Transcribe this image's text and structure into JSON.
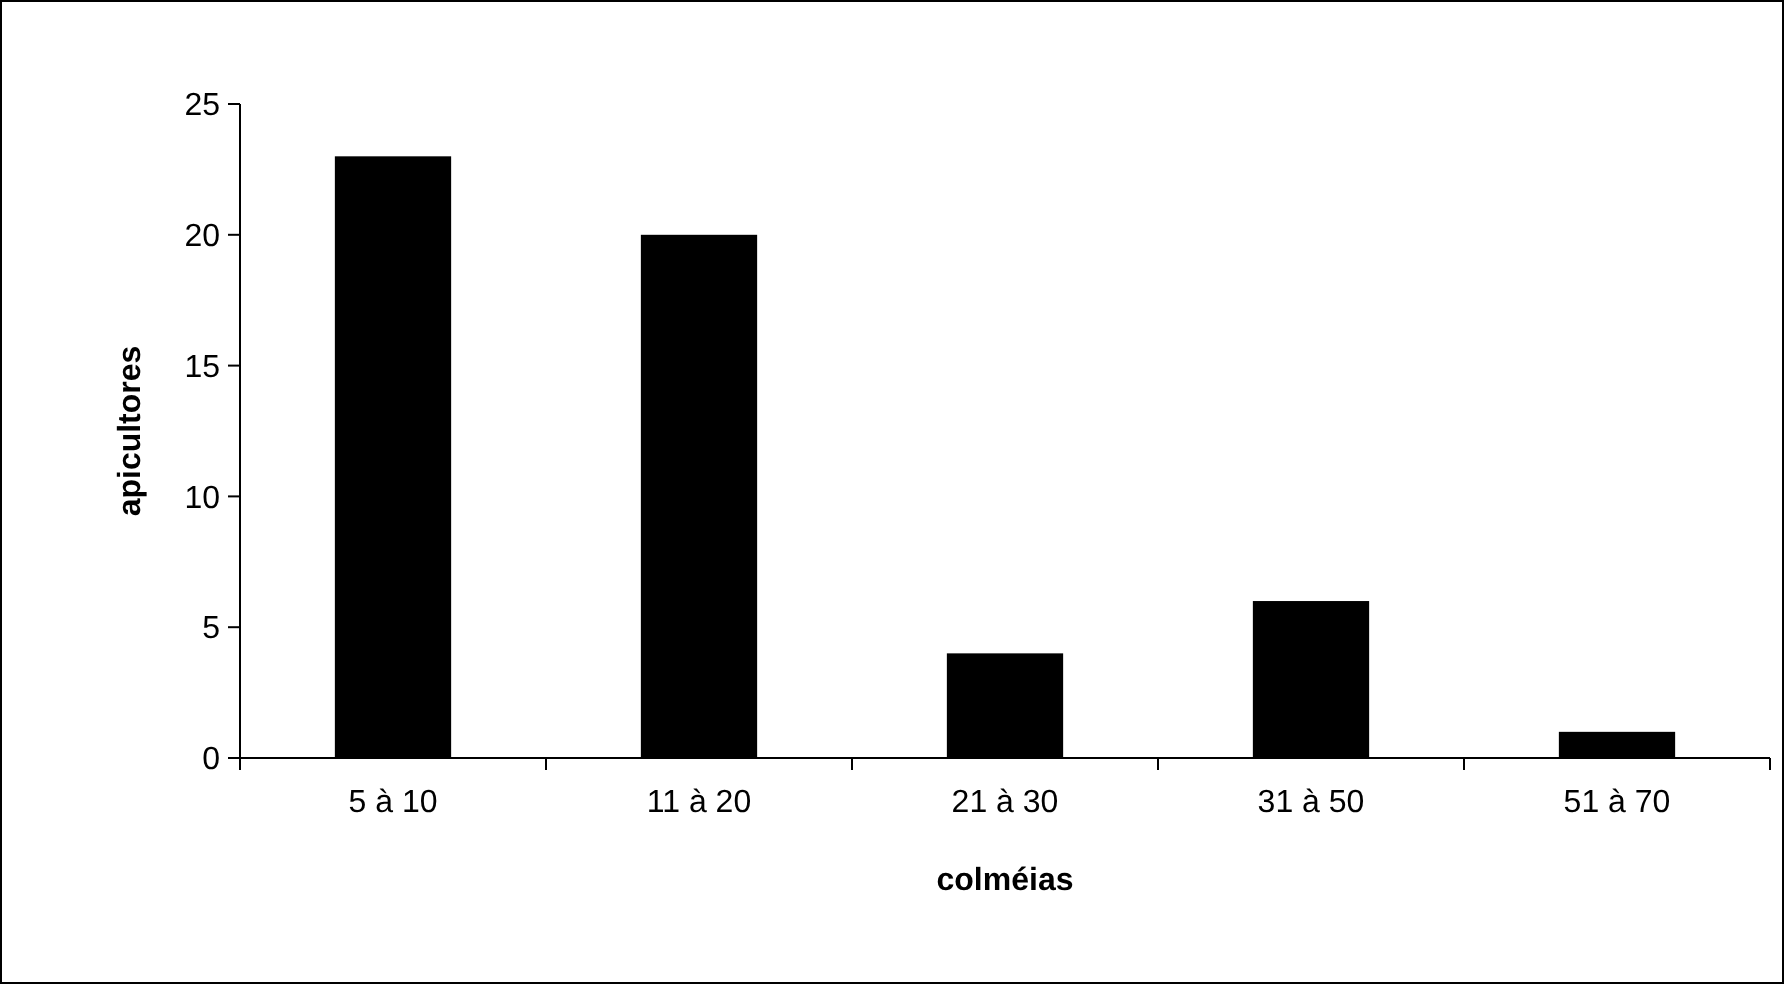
{
  "chart_data": {
    "type": "bar",
    "xlabel": "colméias",
    "ylabel": "apicultores",
    "categories": [
      "5 à 10",
      "11 à 20",
      "21 à 30",
      "31 à 50",
      "51 à 70"
    ],
    "values": [
      23,
      20,
      4,
      6,
      1
    ],
    "color": "#000000",
    "ylim": [
      0,
      25
    ],
    "yticks": [
      0,
      5,
      10,
      15,
      20,
      25
    ]
  }
}
